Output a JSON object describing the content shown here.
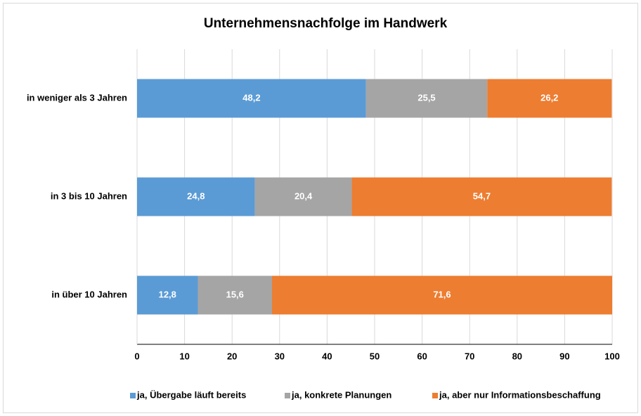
{
  "chart_data": {
    "type": "bar",
    "orientation": "horizontal",
    "stacked": true,
    "title": "Unternehmensnachfolge im Handwerk",
    "categories": [
      "in weniger als 3 Jahren",
      "in 3 bis 10 Jahren",
      "in über 10 Jahren"
    ],
    "series": [
      {
        "name": "ja, Übergabe läuft bereits",
        "color": "#5b9bd5",
        "values": [
          48.2,
          24.8,
          12.8
        ],
        "value_labels": [
          "48,2",
          "24,8",
          "12,8"
        ]
      },
      {
        "name": "ja, konkrete Planungen",
        "color": "#a5a5a5",
        "values": [
          25.5,
          20.4,
          15.6
        ],
        "value_labels": [
          "25,5",
          "20,4",
          "15,6"
        ]
      },
      {
        "name": "ja, aber nur Informationsbeschaffung",
        "color": "#ed7d31",
        "values": [
          26.2,
          54.7,
          71.6
        ],
        "value_labels": [
          "26,2",
          "54,7",
          "71,6"
        ]
      }
    ],
    "xlim": [
      0,
      100
    ],
    "xticks": [
      0,
      10,
      20,
      30,
      40,
      50,
      60,
      70,
      80,
      90,
      100
    ],
    "grid": true,
    "legend": "bottom"
  }
}
